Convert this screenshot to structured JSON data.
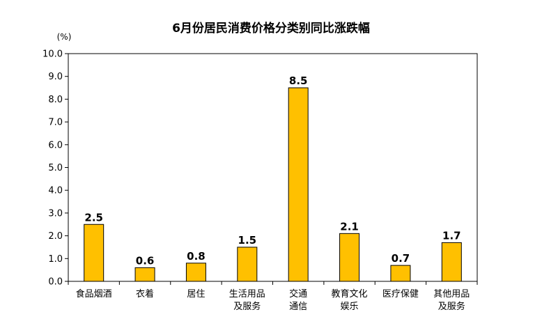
{
  "chart_data": {
    "type": "bar",
    "title": "6月份居民消费价格分类别同比涨跌幅",
    "unit_label": "(%)",
    "ylim": [
      0,
      10
    ],
    "y_ticks": [
      "0.0",
      "1.0",
      "2.0",
      "3.0",
      "4.0",
      "5.0",
      "6.0",
      "7.0",
      "8.0",
      "9.0",
      "10.0"
    ],
    "categories": [
      [
        "食品烟酒"
      ],
      [
        "衣着"
      ],
      [
        "居住"
      ],
      [
        "生活用品",
        "及服务"
      ],
      [
        "交通",
        "通信"
      ],
      [
        "教育文化",
        "娱乐"
      ],
      [
        "医疗保健"
      ],
      [
        "其他用品",
        "及服务"
      ]
    ],
    "values": [
      2.5,
      0.6,
      0.8,
      1.5,
      8.5,
      2.1,
      0.7,
      1.7
    ],
    "value_labels": [
      "2.5",
      "0.6",
      "0.8",
      "1.5",
      "8.5",
      "2.1",
      "0.7",
      "1.7"
    ],
    "bar_color": "#FFC000",
    "bar_stroke": "#000000",
    "grid": false,
    "legend": "none"
  }
}
